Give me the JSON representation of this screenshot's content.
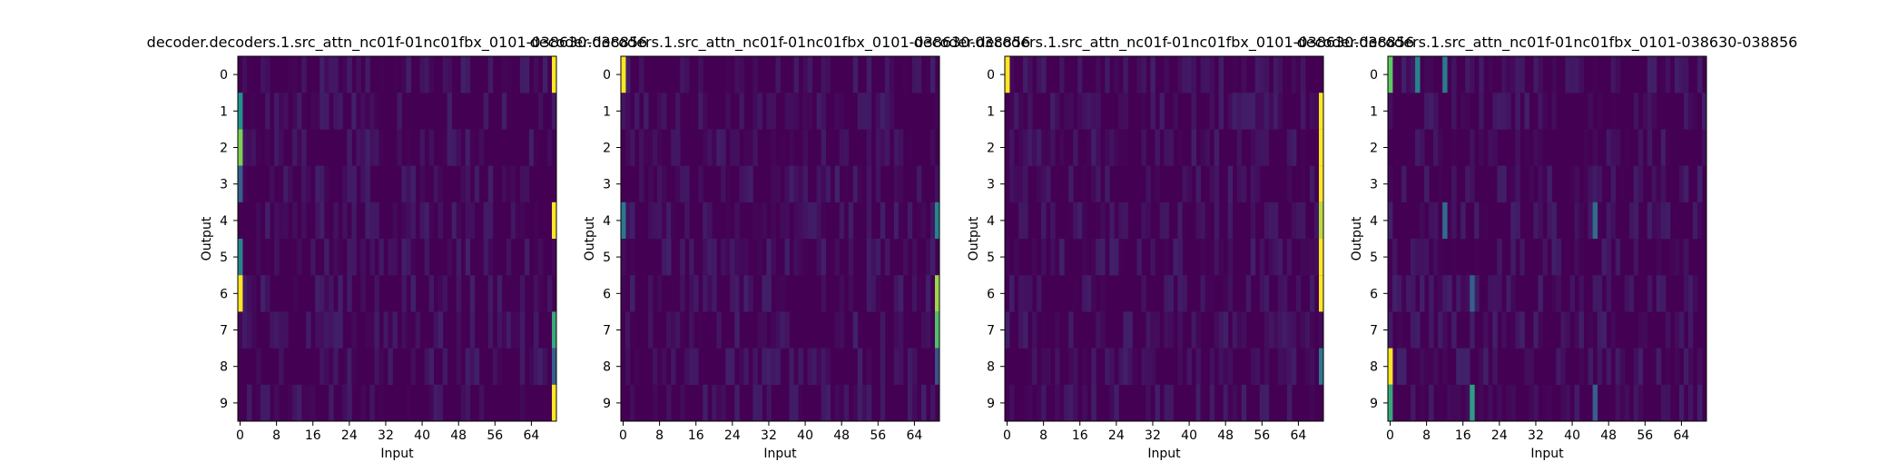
{
  "chart_data": [
    {
      "type": "heatmap",
      "title": "decoder.decoders.1.src_attn_nc01f-01nc01fbx_0101-038630-038856",
      "xlabel": "Input",
      "ylabel": "Output",
      "x_ticks": [
        0,
        8,
        16,
        24,
        32,
        40,
        48,
        56,
        64
      ],
      "y_ticks": [
        0,
        1,
        2,
        3,
        4,
        5,
        6,
        7,
        8,
        9
      ],
      "xlim": [
        0,
        70
      ],
      "rows": 10,
      "colormap": "viridis",
      "value_range": [
        0,
        1
      ],
      "hot_cells": [
        {
          "row": 0,
          "col": 69,
          "value": 1.0
        },
        {
          "row": 1,
          "col": 0,
          "value": 0.5
        },
        {
          "row": 2,
          "col": 0,
          "value": 0.8
        },
        {
          "row": 3,
          "col": 0,
          "value": 0.3
        },
        {
          "row": 4,
          "col": 69,
          "value": 1.0
        },
        {
          "row": 5,
          "col": 0,
          "value": 0.45
        },
        {
          "row": 6,
          "col": 0,
          "value": 1.0
        },
        {
          "row": 7,
          "col": 69,
          "value": 0.6
        },
        {
          "row": 8,
          "col": 69,
          "value": 0.3
        },
        {
          "row": 9,
          "col": 69,
          "value": 1.0
        }
      ]
    },
    {
      "type": "heatmap",
      "title": "decoder.decoders.1.src_attn_nc01f-01nc01fbx_0101-038630-038856",
      "xlabel": "Input",
      "ylabel": "Output",
      "x_ticks": [
        0,
        8,
        16,
        24,
        32,
        40,
        48,
        56,
        64
      ],
      "y_ticks": [
        0,
        1,
        2,
        3,
        4,
        5,
        6,
        7,
        8,
        9
      ],
      "xlim": [
        0,
        70
      ],
      "rows": 10,
      "colormap": "viridis",
      "value_range": [
        0,
        1
      ],
      "hot_cells": [
        {
          "row": 0,
          "col": 0,
          "value": 1.0
        },
        {
          "row": 4,
          "col": 0,
          "value": 0.4
        },
        {
          "row": 4,
          "col": 69,
          "value": 0.45
        },
        {
          "row": 6,
          "col": 69,
          "value": 0.85
        },
        {
          "row": 7,
          "col": 69,
          "value": 0.7
        },
        {
          "row": 8,
          "col": 69,
          "value": 0.25
        }
      ]
    },
    {
      "type": "heatmap",
      "title": "decoder.decoders.1.src_attn_nc01f-01nc01fbx_0101-038630-038856",
      "xlabel": "Input",
      "ylabel": "Output",
      "x_ticks": [
        0,
        8,
        16,
        24,
        32,
        40,
        48,
        56,
        64
      ],
      "y_ticks": [
        0,
        1,
        2,
        3,
        4,
        5,
        6,
        7,
        8,
        9
      ],
      "xlim": [
        0,
        70
      ],
      "rows": 10,
      "colormap": "viridis",
      "value_range": [
        0,
        1
      ],
      "hot_cells": [
        {
          "row": 0,
          "col": 0,
          "value": 1.0
        },
        {
          "row": 1,
          "col": 69,
          "value": 1.0
        },
        {
          "row": 2,
          "col": 69,
          "value": 1.0
        },
        {
          "row": 3,
          "col": 69,
          "value": 1.0
        },
        {
          "row": 4,
          "col": 69,
          "value": 0.9
        },
        {
          "row": 5,
          "col": 69,
          "value": 1.0
        },
        {
          "row": 6,
          "col": 69,
          "value": 1.0
        },
        {
          "row": 8,
          "col": 69,
          "value": 0.4
        }
      ]
    },
    {
      "type": "heatmap",
      "title": "decoder.decoders.1.src_attn_nc01f-01nc01fbx_0101-038630-038856",
      "xlabel": "Input",
      "ylabel": "Output",
      "x_ticks": [
        0,
        8,
        16,
        24,
        32,
        40,
        48,
        56,
        64
      ],
      "y_ticks": [
        0,
        1,
        2,
        3,
        4,
        5,
        6,
        7,
        8,
        9
      ],
      "xlim": [
        0,
        70
      ],
      "rows": 10,
      "colormap": "viridis",
      "value_range": [
        0,
        1
      ],
      "hot_cells": [
        {
          "row": 0,
          "col": 0,
          "value": 0.75
        },
        {
          "row": 0,
          "col": 6,
          "value": 0.45
        },
        {
          "row": 0,
          "col": 12,
          "value": 0.4
        },
        {
          "row": 4,
          "col": 12,
          "value": 0.35
        },
        {
          "row": 4,
          "col": 45,
          "value": 0.35
        },
        {
          "row": 6,
          "col": 18,
          "value": 0.3
        },
        {
          "row": 8,
          "col": 0,
          "value": 1.0
        },
        {
          "row": 9,
          "col": 0,
          "value": 0.6
        },
        {
          "row": 9,
          "col": 18,
          "value": 0.55
        },
        {
          "row": 9,
          "col": 45,
          "value": 0.3
        }
      ]
    }
  ]
}
